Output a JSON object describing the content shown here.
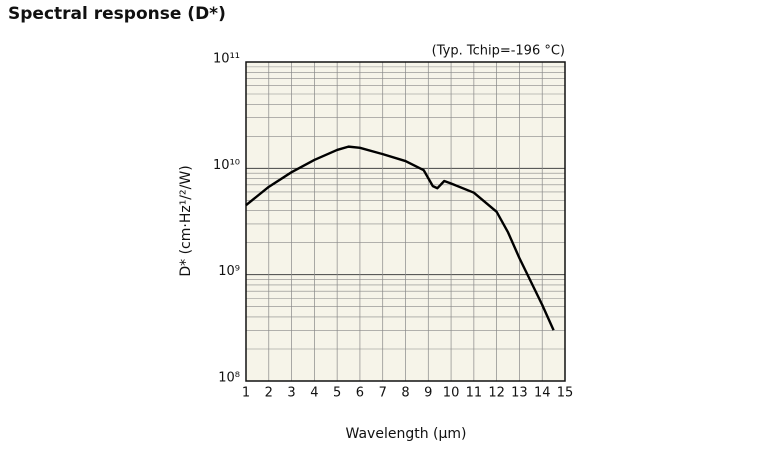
{
  "chart_data": {
    "type": "line",
    "title": "Spectral response (D*)",
    "annotation": "(Typ. Tchip=-196 °C)",
    "xlabel": "Wavelength (μm)",
    "ylabel": "D* (cm·Hz¹/²/W)",
    "x": [
      1,
      2,
      3,
      4,
      5,
      5.5,
      6,
      7,
      8,
      8.8,
      9.2,
      9.4,
      9.7,
      10,
      11,
      12,
      12.5,
      13,
      14,
      14.5
    ],
    "series": [
      {
        "name": "D*",
        "color": "#000000",
        "values": [
          4500000000.0,
          6700000000.0,
          9200000000.0,
          12000000000.0,
          14900000000.0,
          16000000000.0,
          15600000000.0,
          13600000000.0,
          11700000000.0,
          9600000000.0,
          6800000000.0,
          6500000000.0,
          7600000000.0,
          7200000000.0,
          5900000000.0,
          3900000000.0,
          2500000000.0,
          1430000000.0,
          520000000.0,
          300000000.0
        ]
      }
    ],
    "xlim": [
      1,
      15
    ],
    "xticks": [
      1,
      2,
      3,
      4,
      5,
      6,
      7,
      8,
      9,
      10,
      11,
      12,
      13,
      14,
      15
    ],
    "ylim": [
      100000000.0,
      100000000000.0
    ],
    "yticks": [
      {
        "value": 100000000.0,
        "label": "10⁸"
      },
      {
        "value": 1000000000.0,
        "label": "10⁹"
      },
      {
        "value": 10000000000.0,
        "label": "10¹⁰"
      },
      {
        "value": 100000000000.0,
        "label": "10¹¹"
      }
    ],
    "y_minor_ticks": [
      200000000.0,
      300000000.0,
      400000000.0,
      500000000.0,
      600000000.0,
      700000000.0,
      800000000.0,
      900000000.0,
      2000000000.0,
      3000000000.0,
      4000000000.0,
      5000000000.0,
      6000000000.0,
      7000000000.0,
      8000000000.0,
      9000000000.0,
      20000000000.0,
      30000000000.0,
      40000000000.0,
      50000000000.0,
      60000000000.0,
      70000000000.0,
      80000000000.0,
      90000000000.0
    ],
    "log_y": true,
    "grid": true,
    "background": "#f6f4e9"
  }
}
